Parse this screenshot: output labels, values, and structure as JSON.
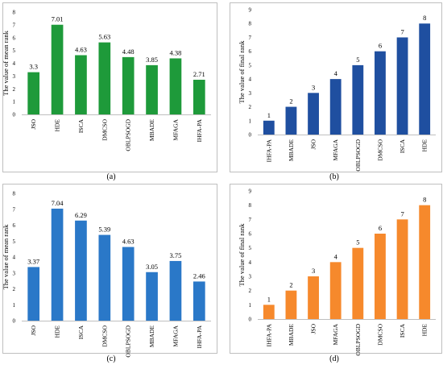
{
  "chart_data": [
    {
      "type": "bar",
      "panel_label": "(a)",
      "categories": [
        "JSO",
        "HDE",
        "ISCA",
        "DMCSO",
        "OBLPSOGD",
        "MBADE",
        "MFAGA",
        "IHFA-PA"
      ],
      "values": [
        3.3,
        7.01,
        4.63,
        5.63,
        4.48,
        3.85,
        4.38,
        2.71
      ],
      "value_labels": [
        "3.3",
        "7.01",
        "4.63",
        "5.63",
        "4.48",
        "3.85",
        "4.38",
        "2.71"
      ],
      "ylabel": "The value of mean rank",
      "ylim": [
        0,
        8
      ],
      "yticks": [
        "0",
        "1",
        "2",
        "3",
        "4",
        "5",
        "6",
        "7",
        "8"
      ],
      "color": "#1e9a3a",
      "grid": false
    },
    {
      "type": "bar",
      "panel_label": "(b)",
      "categories": [
        "IHFA-PA",
        "MBADE",
        "JSO",
        "MFAGA",
        "OBLPSOGD",
        "DMCSO",
        "ISCA",
        "HDE"
      ],
      "values": [
        1,
        2,
        3,
        4,
        5,
        6,
        7,
        8
      ],
      "value_labels": [
        "1",
        "2",
        "3",
        "4",
        "5",
        "6",
        "7",
        "8"
      ],
      "ylabel": "The value of final rank",
      "ylim": [
        0,
        9
      ],
      "yticks": [
        "0",
        "1",
        "2",
        "3",
        "4",
        "5",
        "6",
        "7",
        "8",
        "9"
      ],
      "color": "#1f4fa0",
      "grid": false
    },
    {
      "type": "bar",
      "panel_label": "(c)",
      "categories": [
        "JSO",
        "HDE",
        "ISCA",
        "DMCSO",
        "OBLPSOGD",
        "MBADE",
        "MFAGA",
        "IHFA-PA"
      ],
      "values": [
        3.37,
        7.04,
        6.29,
        5.39,
        4.63,
        3.05,
        3.75,
        2.46
      ],
      "value_labels": [
        "3.37",
        "7.04",
        "6.29",
        "5.39",
        "4.63",
        "3.05",
        "3.75",
        "2.46"
      ],
      "ylabel": "The value of mean rank",
      "ylim": [
        0,
        8
      ],
      "yticks": [
        "0",
        "1",
        "2",
        "3",
        "4",
        "5",
        "6",
        "7",
        "8"
      ],
      "color": "#2a78c8",
      "grid": false
    },
    {
      "type": "bar",
      "panel_label": "(d)",
      "categories": [
        "IHFA-PA",
        "MBADE",
        "JSO",
        "MFAGA",
        "OBLPSOGD",
        "DMCSO",
        "ISCA",
        "HDE"
      ],
      "values": [
        1,
        2,
        3,
        4,
        5,
        6,
        7,
        8
      ],
      "value_labels": [
        "1",
        "2",
        "3",
        "4",
        "5",
        "6",
        "7",
        "8"
      ],
      "ylabel": "The value of final rank",
      "ylim": [
        0,
        9
      ],
      "yticks": [
        "0",
        "1",
        "2",
        "3",
        "4",
        "5",
        "6",
        "7",
        "8",
        "9"
      ],
      "color": "#f6892c",
      "grid": false
    }
  ]
}
